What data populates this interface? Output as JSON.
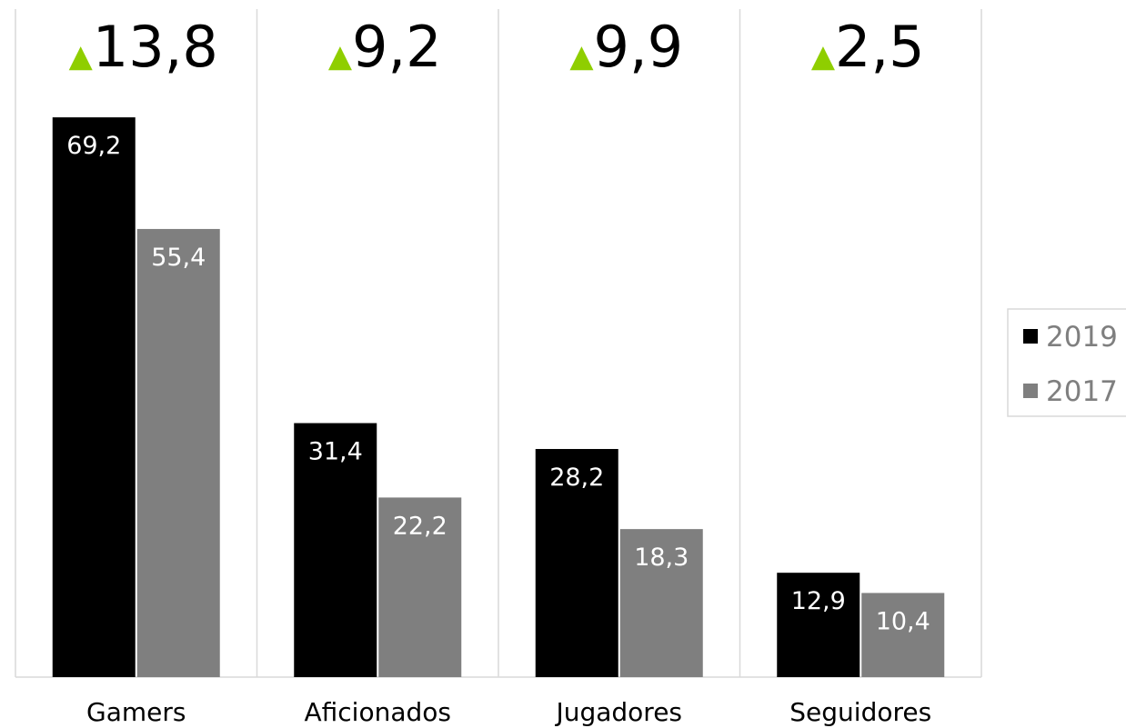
{
  "chart_data": {
    "type": "bar",
    "categories": [
      "Gamers",
      "Aficionados",
      "Jugadores",
      "Seguidores"
    ],
    "series": [
      {
        "name": "2019",
        "values": [
          69.2,
          31.4,
          28.2,
          12.9
        ],
        "labels": [
          "69,2",
          "31,4",
          "28,2",
          "12,9"
        ],
        "color": "#000000"
      },
      {
        "name": "2017",
        "values": [
          55.4,
          22.2,
          18.3,
          10.4
        ],
        "labels": [
          "55,4",
          "22,2",
          "18,3",
          "10,4"
        ],
        "color": "#7f7f7f"
      }
    ],
    "annotations": {
      "symbol": "▲",
      "color": "#8fce00",
      "values": [
        "13,8",
        "9,2",
        "9,9",
        "2,5"
      ]
    },
    "ylim": [
      0,
      80
    ],
    "grid": false,
    "legend": "right"
  }
}
